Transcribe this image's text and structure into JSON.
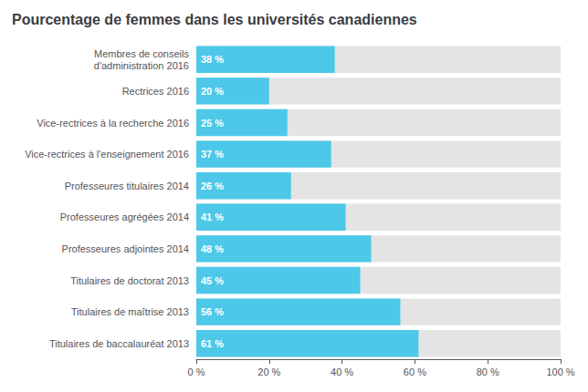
{
  "chart_data": {
    "type": "bar",
    "orientation": "horizontal",
    "title": "Pourcentage de femmes dans les universités canadiennes",
    "categories": [
      "Membres de conseils\nd'administration 2016",
      "Rectrices 2016",
      "Vice-rectrices à la recherche 2016",
      "Vice-rectrices à l'enseignement 2016",
      "Professeures titulaires 2014",
      "Professeures agrégées 2014",
      "Professeures adjointes 2014",
      "Titulaires de doctorat 2013",
      "Titulaires de maîtrise 2013",
      "Titulaires de baccalauréat 2013"
    ],
    "values": [
      38,
      20,
      25,
      37,
      26,
      41,
      48,
      45,
      56,
      61
    ],
    "value_labels": [
      "38 %",
      "20 %",
      "25 %",
      "37 %",
      "26 %",
      "41 %",
      "48 %",
      "45 %",
      "56 %",
      "61 %"
    ],
    "data_labels": true,
    "color": "#4DC8E8",
    "xlim": [
      0,
      100
    ],
    "xticks": [
      {
        "value": 0,
        "label": "0 %"
      },
      {
        "value": 20,
        "label": "20 %"
      },
      {
        "value": 40,
        "label": "40 %"
      },
      {
        "value": 60,
        "label": "60 %"
      },
      {
        "value": 80,
        "label": "80 %"
      },
      {
        "value": 100,
        "label": "100 %"
      }
    ],
    "grid": false
  }
}
